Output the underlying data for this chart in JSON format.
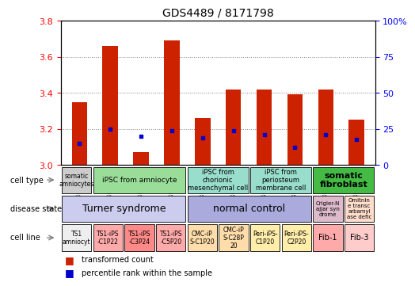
{
  "title": "GDS4489 / 8171798",
  "samples": [
    "GSM807097",
    "GSM807102",
    "GSM807103",
    "GSM807104",
    "GSM807105",
    "GSM807106",
    "GSM807100",
    "GSM807101",
    "GSM807098",
    "GSM807099"
  ],
  "red_values": [
    3.35,
    3.66,
    3.07,
    3.69,
    3.26,
    3.42,
    3.42,
    3.39,
    3.42,
    3.25
  ],
  "blue_values": [
    3.12,
    3.2,
    3.16,
    3.19,
    3.15,
    3.19,
    3.17,
    3.1,
    3.17,
    3.14
  ],
  "ylim_left": [
    3.0,
    3.8
  ],
  "ylim_right": [
    0,
    100
  ],
  "yticks_left": [
    3.0,
    3.2,
    3.4,
    3.6,
    3.8
  ],
  "yticks_right": [
    0,
    25,
    50,
    75,
    100
  ],
  "ytick_right_labels": [
    "0",
    "25",
    "50",
    "75",
    "100%"
  ],
  "cell_type_groups": [
    {
      "label": "somatic\namniocytes",
      "start": 0,
      "end": 1,
      "color": "#cccccc",
      "fontsize": 5.5,
      "bold": false
    },
    {
      "label": "iPSC from amniocyte",
      "start": 1,
      "end": 4,
      "color": "#99dd99",
      "fontsize": 6.5,
      "bold": false
    },
    {
      "label": "iPSC from\nchorionic\nmesenchymal cell",
      "start": 4,
      "end": 6,
      "color": "#99ddcc",
      "fontsize": 6.0,
      "bold": false
    },
    {
      "label": "iPSC from\nperiosteum\nmembrane cell",
      "start": 6,
      "end": 8,
      "color": "#99ddcc",
      "fontsize": 6.0,
      "bold": false
    },
    {
      "label": "somatic\nfibroblast",
      "start": 8,
      "end": 10,
      "color": "#44bb44",
      "fontsize": 8.0,
      "bold": true
    }
  ],
  "disease_state_groups": [
    {
      "label": "Turner syndrome",
      "start": 0,
      "end": 4,
      "color": "#ccccee",
      "fontsize": 9.0,
      "bold": false
    },
    {
      "label": "normal control",
      "start": 4,
      "end": 8,
      "color": "#aaaadd",
      "fontsize": 9.0,
      "bold": false
    },
    {
      "label": "Crigler-N\najjar syn\ndrome",
      "start": 8,
      "end": 9,
      "color": "#ddbbcc",
      "fontsize": 5.0,
      "bold": false
    },
    {
      "label": "Omitnin\ne transc\narbamyl\nase defic",
      "start": 9,
      "end": 10,
      "color": "#ffddcc",
      "fontsize": 5.0,
      "bold": false
    }
  ],
  "cell_line_groups": [
    {
      "label": "TS1\namniocyt",
      "start": 0,
      "end": 1,
      "color": "#eeeeee",
      "fontsize": 5.5,
      "bold": false
    },
    {
      "label": "TS1-iPS\n-C1P22",
      "start": 1,
      "end": 2,
      "color": "#ffaaaa",
      "fontsize": 5.5,
      "bold": false
    },
    {
      "label": "TS1-iPS\n-C3P24",
      "start": 2,
      "end": 3,
      "color": "#ff8888",
      "fontsize": 5.5,
      "bold": false
    },
    {
      "label": "TS1-iPS\n-C5P20",
      "start": 3,
      "end": 4,
      "color": "#ffaaaa",
      "fontsize": 5.5,
      "bold": false
    },
    {
      "label": "CMC-iP\nS-C1P20",
      "start": 4,
      "end": 5,
      "color": "#ffddaa",
      "fontsize": 5.5,
      "bold": false
    },
    {
      "label": "CMC-iP\nS-C28P\n20",
      "start": 5,
      "end": 6,
      "color": "#ffddaa",
      "fontsize": 5.5,
      "bold": false
    },
    {
      "label": "Peri-iPS-\nC1P20",
      "start": 6,
      "end": 7,
      "color": "#ffeeaa",
      "fontsize": 5.5,
      "bold": false
    },
    {
      "label": "Peri-iPS-\nC2P20",
      "start": 7,
      "end": 8,
      "color": "#ffeeaa",
      "fontsize": 5.5,
      "bold": false
    },
    {
      "label": "Fib-1",
      "start": 8,
      "end": 9,
      "color": "#ffaaaa",
      "fontsize": 7.0,
      "bold": false
    },
    {
      "label": "Fib-3",
      "start": 9,
      "end": 10,
      "color": "#ffcccc",
      "fontsize": 7.0,
      "bold": false
    }
  ],
  "row_labels": [
    "cell type",
    "disease state",
    "cell line"
  ],
  "row_keys": [
    "cell_type_groups",
    "disease_state_groups",
    "cell_line_groups"
  ],
  "bar_color": "#cc2200",
  "blue_color": "#0000cc",
  "bar_width": 0.5,
  "legend_red": "transformed count",
  "legend_blue": "percentile rank within the sample"
}
